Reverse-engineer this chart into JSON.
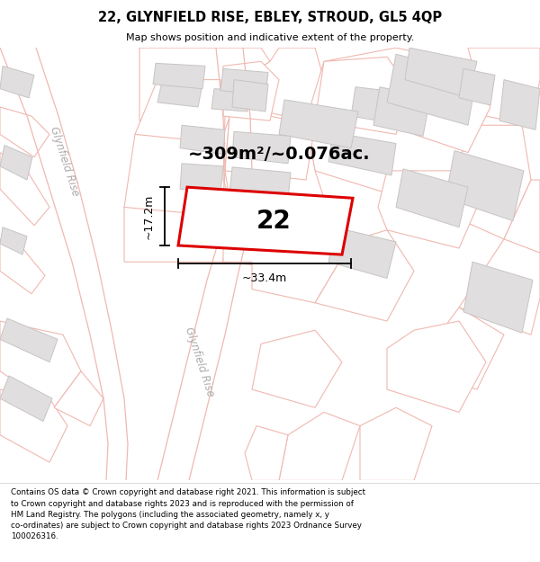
{
  "title_line1": "22, GLYNFIELD RISE, EBLEY, STROUD, GL5 4QP",
  "title_line2": "Map shows position and indicative extent of the property.",
  "area_text": "~309m²/~0.076ac.",
  "label_number": "22",
  "dim_width": "~33.4m",
  "dim_height": "~17.2m",
  "footer_text_wrapped": "Contains OS data © Crown copyright and database right 2021. This information is subject\nto Crown copyright and database rights 2023 and is reproduced with the permission of\nHM Land Registry. The polygons (including the associated geometry, namely x, y\nco-ordinates) are subject to Crown copyright and database rights 2023 Ordnance Survey\n100026316.",
  "map_bg": "#ffffff",
  "road_fill": "#ffffff",
  "road_edge": "#f0b8b0",
  "plot_outline": "#f0b8b0",
  "building_fill": "#e0dede",
  "building_edge": "#c8c4c4",
  "highlight_fill": "#ffffff",
  "highlight_edge": "#dd0000",
  "street_color": "#b0aaaa",
  "dim_color": "#000000",
  "title_color": "#000000",
  "footer_color": "#000000"
}
